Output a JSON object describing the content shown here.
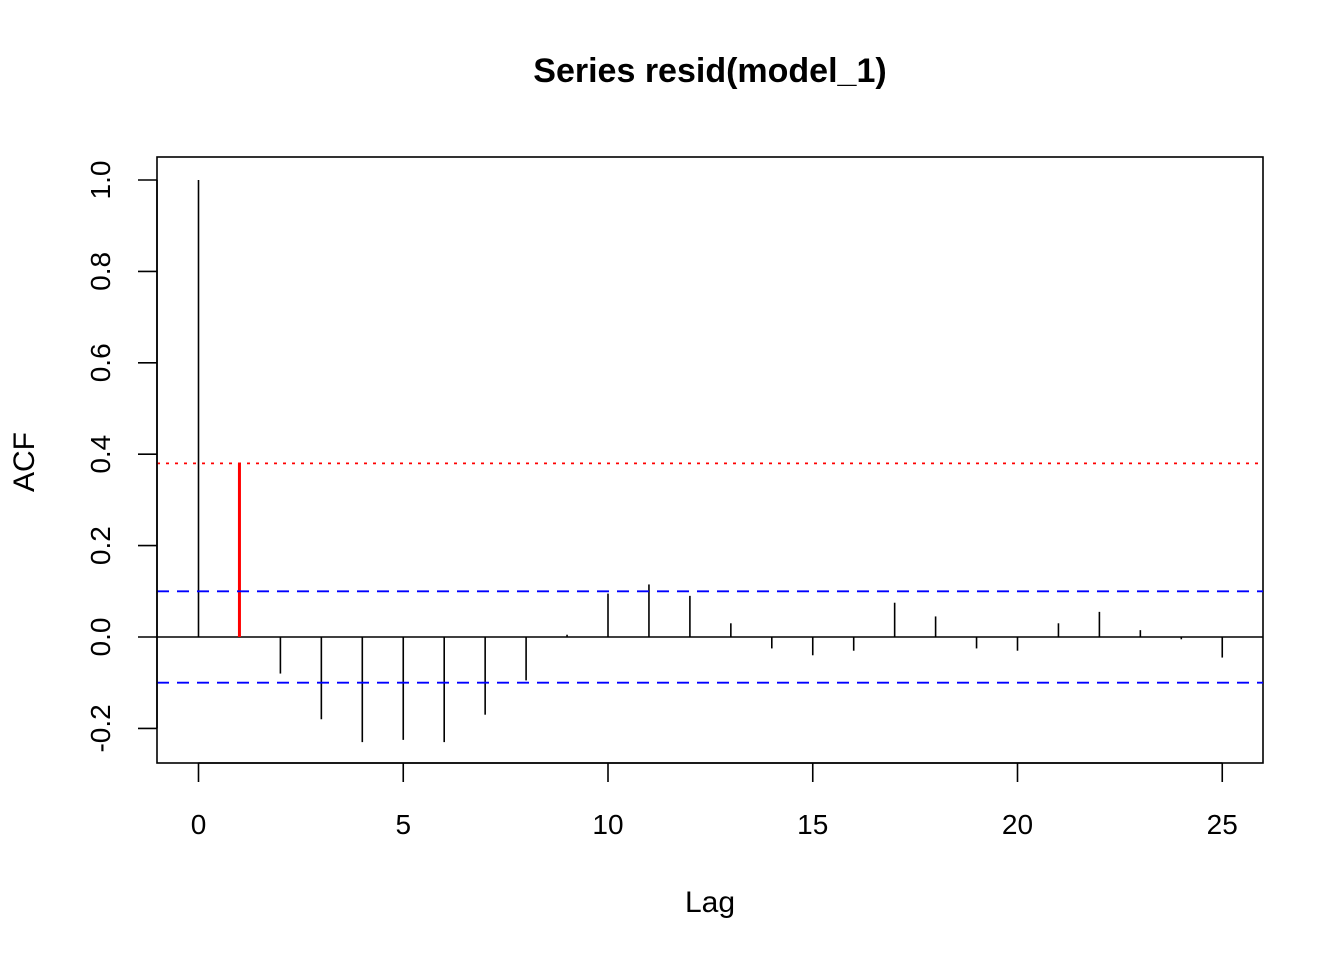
{
  "chart_data": {
    "type": "bar",
    "title": "Series resid(model_1)",
    "xlabel": "Lag",
    "ylabel": "ACF",
    "xlim": [
      -1,
      26
    ],
    "ylim": [
      -0.28,
      1.05
    ],
    "x_ticks": [
      0,
      5,
      10,
      15,
      20,
      25
    ],
    "x_tick_labels": [
      "0",
      "5",
      "10",
      "15",
      "20",
      "25"
    ],
    "y_ticks": [
      -0.2,
      0.0,
      0.2,
      0.4,
      0.6,
      0.8,
      1.0
    ],
    "y_tick_labels": [
      "-0.2",
      "0.0",
      "0.2",
      "0.4",
      "0.6",
      "0.8",
      "1.0"
    ],
    "lags": [
      0,
      1,
      2,
      3,
      4,
      5,
      6,
      7,
      8,
      9,
      10,
      11,
      12,
      13,
      14,
      15,
      16,
      17,
      18,
      19,
      20,
      21,
      22,
      23,
      24,
      25
    ],
    "values": [
      1.0,
      0.38,
      -0.08,
      -0.18,
      -0.23,
      -0.225,
      -0.23,
      -0.17,
      -0.095,
      0.005,
      0.095,
      0.115,
      0.09,
      0.03,
      -0.025,
      -0.04,
      -0.03,
      0.075,
      0.045,
      -0.025,
      -0.03,
      0.03,
      0.055,
      0.015,
      -0.005,
      -0.045
    ],
    "highlight": {
      "lag": 1,
      "color": "#ff0000"
    },
    "bar_color": "#000000",
    "confidence_band": {
      "upper": 0.1,
      "lower": -0.1,
      "color": "#0000ff",
      "style": "dashed"
    },
    "reference_line": {
      "value": 0.38,
      "color": "#ff0000",
      "style": "dotted"
    },
    "zero_line": 0.0,
    "grid": false,
    "legend": "none"
  }
}
